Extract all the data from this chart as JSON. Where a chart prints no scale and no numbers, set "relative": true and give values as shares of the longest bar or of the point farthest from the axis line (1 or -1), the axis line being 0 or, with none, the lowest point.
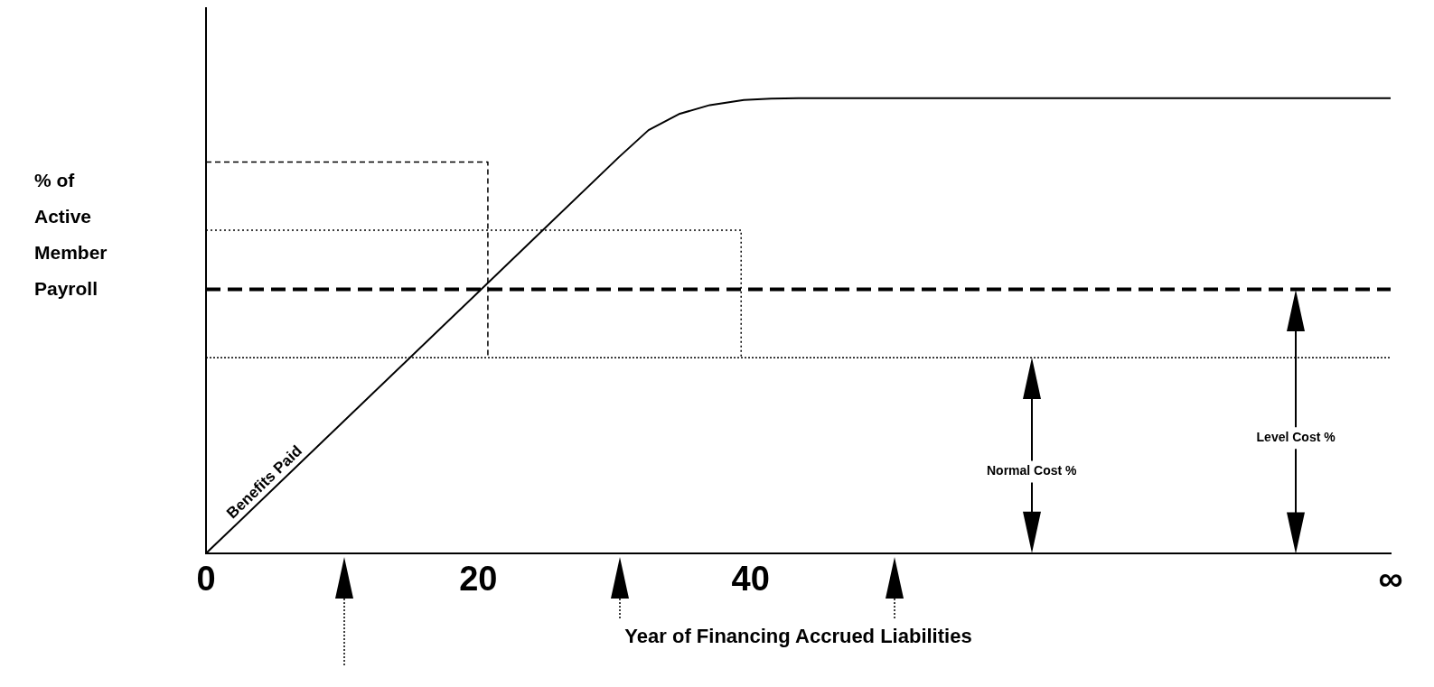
{
  "chart_data": {
    "type": "line",
    "relative": true,
    "xlabel": "Year of Financing Accrued Liabilities",
    "ylabel": "% of Active Member Payroll",
    "xlim": [
      0,
      87
    ],
    "xticks": [
      0,
      20,
      40,
      {
        "value": 87,
        "label": "∞"
      }
    ],
    "grid": false,
    "legend": false,
    "marker": "none",
    "series": [
      {
        "name": "Benefits Paid",
        "color": "#000000",
        "line_style": "solid",
        "x": [
          0,
          30.3,
          32.5,
          34.8,
          37,
          39.5,
          41.5,
          43.5,
          87
        ],
        "values": [
          0,
          0.87,
          0.93,
          0.966,
          0.985,
          0.996,
          0.999,
          1,
          1
        ]
      },
      {
        "color": "#000000",
        "line_style": "dashed",
        "x": [
          0,
          20.7,
          20.7
        ],
        "values": [
          0.86,
          0.86,
          0.43
        ]
      },
      {
        "color": "#000000",
        "line_style": "dotted",
        "x": [
          0,
          39.3,
          39.3
        ],
        "values": [
          0.71,
          0.71,
          0.43
        ]
      }
    ],
    "ref_lines": [
      {
        "axis": "y",
        "value": 0.43,
        "line_style": "dotted",
        "color": "#000000"
      },
      {
        "axis": "y",
        "value": 0.58,
        "line_style": "dashed",
        "color": "#000000"
      }
    ],
    "annotations": [
      "Normal Cost %",
      "Level Cost %"
    ]
  }
}
